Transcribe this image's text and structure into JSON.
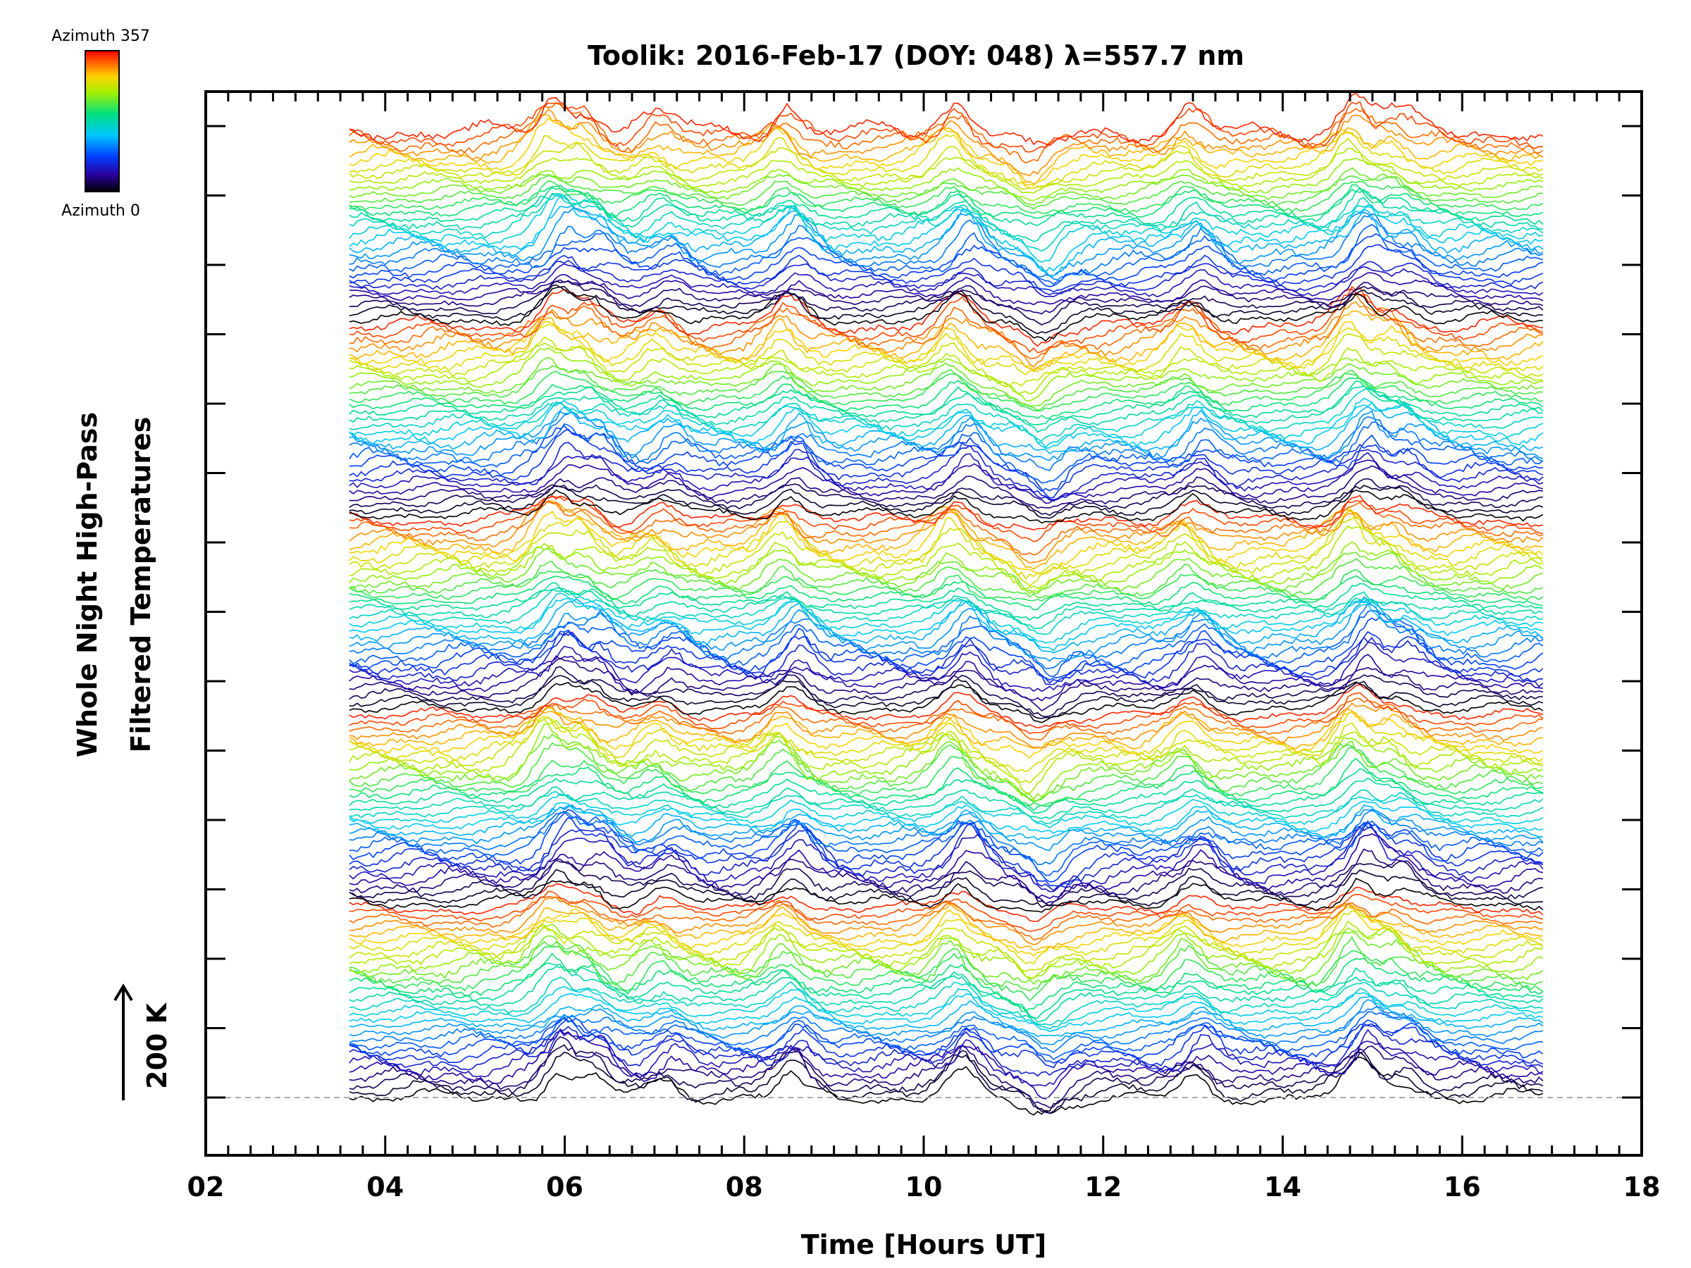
{
  "chart_data": {
    "type": "line",
    "title": "Toolik: 2016-Feb-17 (DOY: 048) λ=557.7 nm",
    "xlabel": "Time [Hours UT]",
    "ylabel_line1": "Whole Night High-Pass",
    "ylabel_line2": "Filtered Temperatures",
    "xlim": [
      2,
      18
    ],
    "x_ticks": [
      "02",
      "04",
      "06",
      "08",
      "10",
      "12",
      "14",
      "16",
      "18"
    ],
    "data_x_range": [
      3.6,
      16.9
    ],
    "scale_bar_label": "200 K",
    "colorbar": {
      "top_label": "Azimuth 357",
      "bottom_label": "Azimuth 0",
      "colormap": "rainbow",
      "range": [
        0,
        357
      ]
    },
    "series_description": "Stacked high-pass filtered temperature time series, one per azimuth, offset vertically and coloured by azimuth",
    "num_series": 160,
    "series_period_by_azimuth": 32,
    "events_hours_ut": [
      5.9,
      6.3,
      7.1,
      8.5,
      10.4,
      11.3,
      13.0,
      14.85,
      15.3
    ],
    "baseline_style": "dashed gray"
  },
  "colors": {
    "background": "#ffffff",
    "axis": "#000000",
    "baseline": "#aaaaaa"
  }
}
